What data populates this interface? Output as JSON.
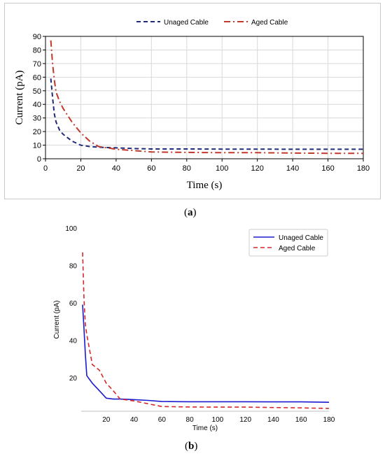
{
  "captions": {
    "a_letter": "a",
    "b_letter": "b"
  },
  "chart_data": [
    {
      "panel": "a",
      "type": "line",
      "xlabel": "Time (s)",
      "ylabel": "Current (pA)",
      "xlim": [
        0,
        180
      ],
      "ylim": [
        0,
        90
      ],
      "xticks": [
        0,
        20,
        40,
        60,
        80,
        100,
        120,
        140,
        160,
        180
      ],
      "yticks": [
        0,
        10,
        20,
        30,
        40,
        50,
        60,
        70,
        80,
        90
      ],
      "grid": true,
      "legend_position": "top",
      "series": [
        {
          "name": "Unaged Cable",
          "color": "#1f2a7a",
          "style": "dashed",
          "x": [
            3,
            4,
            5,
            6,
            8,
            10,
            15,
            20,
            25,
            30,
            40,
            50,
            60,
            80,
            100,
            120,
            140,
            160,
            180
          ],
          "y": [
            59,
            45,
            33,
            27,
            21,
            18,
            13,
            10,
            9,
            8.5,
            8,
            7.5,
            7.2,
            7.2,
            7.1,
            7.1,
            7,
            7,
            7
          ]
        },
        {
          "name": "Aged Cable",
          "color": "#c0392b",
          "style": "dash-dot",
          "x": [
            3,
            4,
            5,
            6,
            8,
            10,
            15,
            20,
            25,
            30,
            40,
            50,
            60,
            80,
            100,
            120,
            140,
            160,
            180
          ],
          "y": [
            87,
            70,
            58,
            49,
            42,
            37,
            27,
            19,
            13,
            9,
            7,
            6,
            5,
            4.7,
            4.5,
            4.5,
            4.2,
            4,
            4
          ]
        }
      ]
    },
    {
      "panel": "b",
      "type": "line",
      "xlabel": "Time (s)",
      "ylabel": "Current (pA)",
      "xlim": [
        2,
        180
      ],
      "ylim": [
        2,
        100
      ],
      "xticks": [
        20,
        40,
        60,
        80,
        100,
        120,
        140,
        160,
        180
      ],
      "yticks": [
        20,
        40,
        60,
        80,
        100
      ],
      "grid": false,
      "legend_position": "top-right",
      "series": [
        {
          "name": "Unaged Cable",
          "color": "#1a1ad0",
          "style": "solid",
          "x": [
            3,
            4,
            5,
            6,
            10,
            15,
            20,
            25,
            30,
            40,
            50,
            60,
            80,
            100,
            120,
            140,
            160,
            180
          ],
          "y": [
            59,
            46,
            32,
            21,
            17,
            13,
            9,
            8.5,
            8.5,
            8.2,
            7.8,
            7.2,
            7.1,
            7.1,
            7.1,
            7,
            7,
            6.8
          ]
        },
        {
          "name": "Aged Cable",
          "color": "#d62728",
          "style": "dashed",
          "x": [
            3,
            4,
            5,
            6,
            8,
            10,
            15,
            20,
            25,
            30,
            40,
            50,
            60,
            80,
            100,
            120,
            140,
            160,
            180
          ],
          "y": [
            87,
            62,
            48,
            43,
            35,
            27,
            24,
            17,
            13,
            8.5,
            7.5,
            6,
            4.5,
            4.3,
            4.2,
            4.2,
            4,
            3.8,
            3.5
          ]
        }
      ]
    }
  ]
}
